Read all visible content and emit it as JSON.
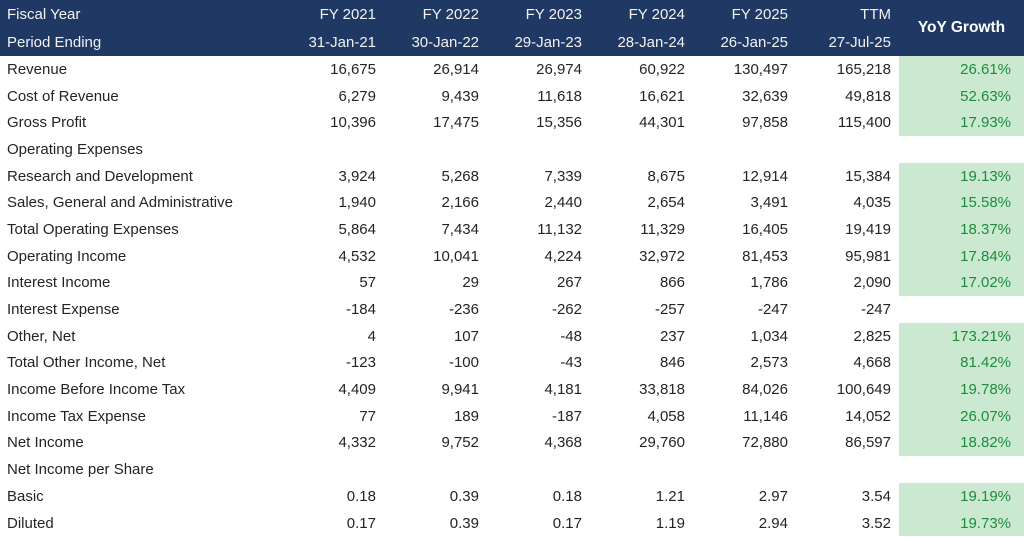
{
  "chart_data": {
    "type": "table",
    "header": {
      "row1_label": "Fiscal Year",
      "row2_label": "Period Ending",
      "yoy_label": "YoY Growth",
      "columns": [
        {
          "fiscal_year": "FY 2021",
          "period_ending": "31-Jan-21"
        },
        {
          "fiscal_year": "FY 2022",
          "period_ending": "30-Jan-22"
        },
        {
          "fiscal_year": "FY 2023",
          "period_ending": "29-Jan-23"
        },
        {
          "fiscal_year": "FY 2024",
          "period_ending": "28-Jan-24"
        },
        {
          "fiscal_year": "FY 2025",
          "period_ending": "26-Jan-25"
        },
        {
          "fiscal_year": "TTM",
          "period_ending": "27-Jul-25"
        }
      ]
    },
    "rows": [
      {
        "label": "Revenue",
        "values": [
          "16,675",
          "26,914",
          "26,974",
          "60,922",
          "130,497",
          "165,218"
        ],
        "yoy": "26.61%"
      },
      {
        "label": "Cost of Revenue",
        "values": [
          "6,279",
          "9,439",
          "11,618",
          "16,621",
          "32,639",
          "49,818"
        ],
        "yoy": "52.63%"
      },
      {
        "label": "Gross Profit",
        "values": [
          "10,396",
          "17,475",
          "15,356",
          "44,301",
          "97,858",
          "115,400"
        ],
        "yoy": "17.93%"
      },
      {
        "label": "Operating Expenses",
        "values": [
          "",
          "",
          "",
          "",
          "",
          ""
        ],
        "yoy": ""
      },
      {
        "label": "Research and Development",
        "values": [
          "3,924",
          "5,268",
          "7,339",
          "8,675",
          "12,914",
          "15,384"
        ],
        "yoy": "19.13%"
      },
      {
        "label": "Sales, General and Administrative",
        "values": [
          "1,940",
          "2,166",
          "2,440",
          "2,654",
          "3,491",
          "4,035"
        ],
        "yoy": "15.58%"
      },
      {
        "label": "Total Operating Expenses",
        "values": [
          "5,864",
          "7,434",
          "11,132",
          "11,329",
          "16,405",
          "19,419"
        ],
        "yoy": "18.37%"
      },
      {
        "label": "Operating Income",
        "values": [
          "4,532",
          "10,041",
          "4,224",
          "32,972",
          "81,453",
          "95,981"
        ],
        "yoy": "17.84%"
      },
      {
        "label": "Interest Income",
        "values": [
          "57",
          "29",
          "267",
          "866",
          "1,786",
          "2,090"
        ],
        "yoy": "17.02%"
      },
      {
        "label": "Interest Expense",
        "values": [
          "-184",
          "-236",
          "-262",
          "-257",
          "-247",
          "-247"
        ],
        "yoy": ""
      },
      {
        "label": "Other, Net",
        "values": [
          "4",
          "107",
          "-48",
          "237",
          "1,034",
          "2,825"
        ],
        "yoy": "173.21%"
      },
      {
        "label": "Total Other Income, Net",
        "values": [
          "-123",
          "-100",
          "-43",
          "846",
          "2,573",
          "4,668"
        ],
        "yoy": "81.42%"
      },
      {
        "label": "Income Before Income Tax",
        "values": [
          "4,409",
          "9,941",
          "4,181",
          "33,818",
          "84,026",
          "100,649"
        ],
        "yoy": "19.78%"
      },
      {
        "label": "Income Tax Expense",
        "values": [
          "77",
          "189",
          "-187",
          "4,058",
          "11,146",
          "14,052"
        ],
        "yoy": "26.07%"
      },
      {
        "label": "Net Income",
        "values": [
          "4,332",
          "9,752",
          "4,368",
          "29,760",
          "72,880",
          "86,597"
        ],
        "yoy": "18.82%"
      },
      {
        "label": "Net Income per Share",
        "values": [
          "",
          "",
          "",
          "",
          "",
          ""
        ],
        "yoy": ""
      },
      {
        "label": "Basic",
        "values": [
          "0.18",
          "0.39",
          "0.18",
          "1.21",
          "2.97",
          "3.54"
        ],
        "yoy": "19.19%"
      },
      {
        "label": "Diluted",
        "values": [
          "0.17",
          "0.39",
          "0.17",
          "1.19",
          "2.94",
          "3.52"
        ],
        "yoy": "19.73%"
      }
    ],
    "colors": {
      "header_bg": "#1F3864",
      "header_text": "#F2F2F2",
      "yoy_header_text": "#FFFFFF",
      "growth_bg": "#CBE9D1",
      "growth_text": "#1E8C3C",
      "value_text": "#242428"
    }
  }
}
